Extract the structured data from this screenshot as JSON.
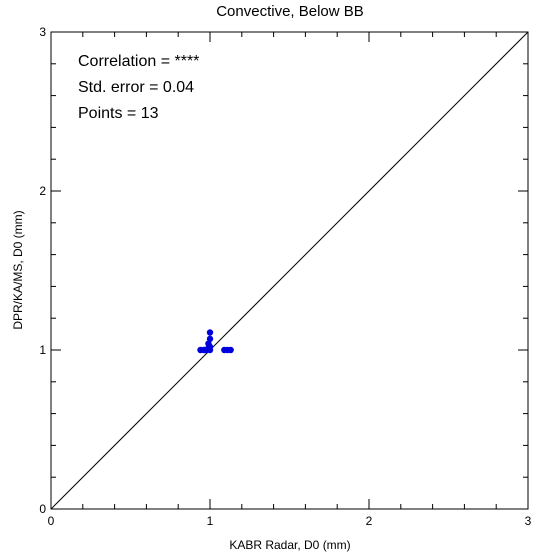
{
  "chart_data": {
    "type": "scatter",
    "title": "Convective, Below BB",
    "xlabel": "KABR Radar, D0 (mm)",
    "ylabel": "DPR/KA/MS, D0 (mm)",
    "xlim": [
      0,
      3
    ],
    "ylim": [
      0,
      3
    ],
    "xticks": [
      "0",
      "1",
      "2",
      "3"
    ],
    "yticks": [
      "0",
      "1",
      "2",
      "3"
    ],
    "grid": false,
    "reference_line": "y = x",
    "stats": [
      "Correlation = ****",
      "Std. error = 0.04",
      "Points = 13"
    ],
    "point_color": "#0000dd",
    "points": [
      {
        "x": 0.94,
        "y": 1.0
      },
      {
        "x": 0.96,
        "y": 1.0
      },
      {
        "x": 0.97,
        "y": 1.0
      },
      {
        "x": 0.98,
        "y": 1.0
      },
      {
        "x": 0.99,
        "y": 1.01
      },
      {
        "x": 0.99,
        "y": 1.04
      },
      {
        "x": 1.0,
        "y": 1.0
      },
      {
        "x": 1.0,
        "y": 1.02
      },
      {
        "x": 1.0,
        "y": 1.07
      },
      {
        "x": 1.0,
        "y": 1.11
      },
      {
        "x": 1.09,
        "y": 1.0
      },
      {
        "x": 1.11,
        "y": 1.0
      },
      {
        "x": 1.13,
        "y": 1.0
      }
    ]
  }
}
